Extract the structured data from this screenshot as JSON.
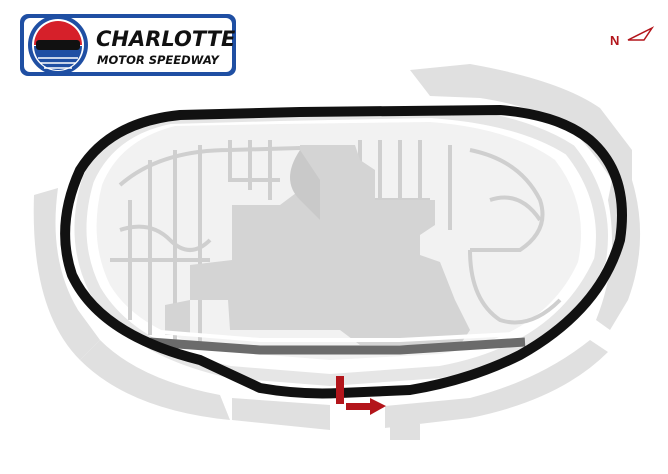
{
  "logo": {
    "line1": "CHARLOTTE",
    "line2": "MOTOR SPEEDWAY"
  },
  "compass": {
    "label": "N"
  },
  "colors": {
    "track": "#111111",
    "infield": "#d7d7d7",
    "stands": "#e2e2e2",
    "pit_road": "#6b6b6b",
    "accent_red": "#b3151b",
    "logo_blue": "#1f4fa3",
    "logo_red": "#d6202a"
  },
  "icons": {
    "start_finish": "start-finish-arrow-icon",
    "compass": "north-arrow-icon"
  }
}
